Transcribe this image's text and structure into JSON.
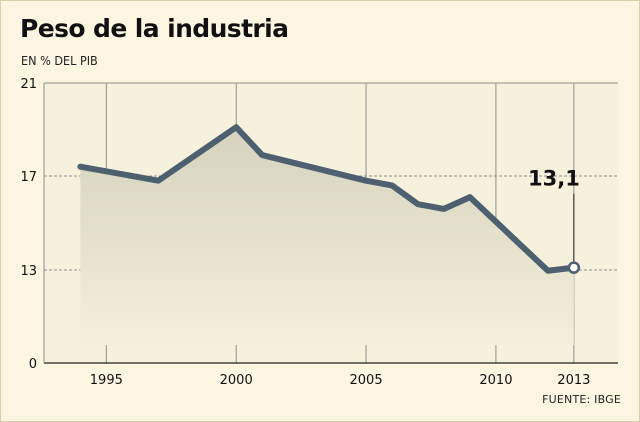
{
  "header": {
    "title": "Peso de la industria",
    "subtitle": "EN % DEL PIB"
  },
  "footer": {
    "source": "FUENTE: IBGE"
  },
  "colors": {
    "background": "#fbf5e2",
    "plot_background": "#f6f1dd",
    "line": "#4c6070",
    "area_top": "#d5d2bd",
    "area_bottom": "#f3efdc",
    "grid": "#8f8f8f"
  },
  "chart_data": {
    "type": "area",
    "title": "Peso de la industria",
    "subtitle": "EN % DEL PIB",
    "xlabel": "",
    "ylabel": "",
    "x_ticks": [
      "1995",
      "2000",
      "2005",
      "2010",
      "2013"
    ],
    "y_ticks": [
      0,
      13,
      17,
      21
    ],
    "ylim": [
      0,
      21
    ],
    "grid": true,
    "series": [
      {
        "x": [
          1994,
          1997,
          2000,
          2001,
          2005,
          2006,
          2007,
          2008,
          2009,
          2012,
          2013
        ],
        "values": [
          17.4,
          16.8,
          19.1,
          17.9,
          16.8,
          16.6,
          15.8,
          15.6,
          16.1,
          12.9,
          13.1
        ]
      }
    ],
    "callout": {
      "x": 2013,
      "value": 13.1,
      "label": "13,1"
    },
    "source": "FUENTE: IBGE"
  }
}
